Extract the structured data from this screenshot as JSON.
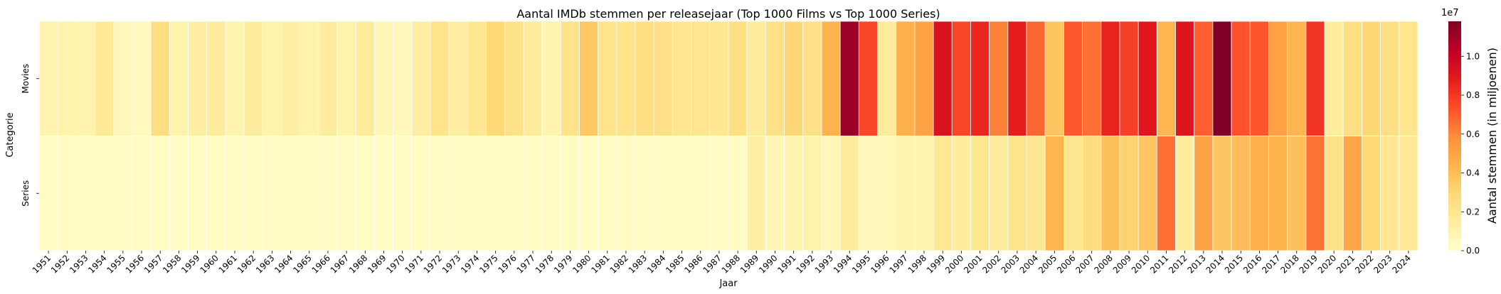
{
  "chart_data": {
    "type": "heatmap",
    "title": "Aantal IMDb stemmen per releasejaar (Top 1000 Films vs Top 1000 Series)",
    "xlabel": "Jaar",
    "ylabel": "Categorie",
    "colorbar_label": "Aantal stemmen (in miljoenen)",
    "colorbar_multiplier": "1e7",
    "colorbar_range": [
      0,
      11800000
    ],
    "colorbar_ticks": [
      "0.0",
      "0.2",
      "0.4",
      "0.6",
      "0.8",
      "1.0"
    ],
    "colorbar_tick_values": [
      0,
      2000000,
      4000000,
      6000000,
      8000000,
      10000000
    ],
    "colormap": "YlOrRd",
    "rows": [
      "Movies",
      "Series"
    ],
    "years": [
      "1951",
      "1952",
      "1953",
      "1954",
      "1955",
      "1956",
      "1957",
      "1958",
      "1959",
      "1960",
      "1961",
      "1962",
      "1963",
      "1964",
      "1965",
      "1966",
      "1967",
      "1968",
      "1969",
      "1970",
      "1971",
      "1972",
      "1973",
      "1974",
      "1975",
      "1976",
      "1977",
      "1978",
      "1979",
      "1980",
      "1981",
      "1982",
      "1983",
      "1984",
      "1985",
      "1986",
      "1987",
      "1988",
      "1989",
      "1990",
      "1991",
      "1992",
      "1993",
      "1994",
      "1995",
      "1996",
      "1997",
      "1998",
      "1999",
      "2000",
      "2001",
      "2002",
      "2003",
      "2004",
      "2005",
      "2006",
      "2007",
      "2008",
      "2009",
      "2010",
      "2011",
      "2012",
      "2013",
      "2014",
      "2015",
      "2016",
      "2017",
      "2018",
      "2019",
      "2020",
      "2021",
      "2022",
      "2023",
      "2024"
    ],
    "series": [
      {
        "name": "Movies",
        "values": [
          1000000,
          1100000,
          1000000,
          1800000,
          700000,
          500000,
          2600000,
          1100000,
          1400000,
          1600000,
          1000000,
          1500000,
          1100000,
          1300000,
          1100000,
          1500000,
          1100000,
          1600000,
          800000,
          600000,
          1400000,
          2200000,
          1400000,
          2000000,
          2900000,
          2300000,
          1600000,
          1000000,
          2200000,
          3600000,
          2200000,
          2200000,
          2500000,
          2400000,
          2100000,
          2100000,
          2000000,
          2500000,
          1600000,
          2400000,
          3000000,
          2400000,
          4400000,
          11100000,
          7600000,
          1600000,
          4500000,
          5000000,
          9200000,
          7600000,
          8500000,
          6200000,
          8800000,
          6800000,
          3700000,
          7100000,
          6600000,
          8600000,
          7800000,
          9000000,
          4300000,
          9100000,
          7000000,
          11800000,
          7300000,
          7200000,
          5100000,
          4300000,
          8100000,
          1500000,
          2500000,
          3000000,
          2500000,
          2100000
        ]
      },
      {
        "name": "Series",
        "values": [
          300000,
          300000,
          300000,
          300000,
          300000,
          300000,
          300000,
          300000,
          300000,
          300000,
          300000,
          300000,
          300000,
          300000,
          300000,
          300000,
          300000,
          300000,
          300000,
          300000,
          300000,
          300000,
          300000,
          300000,
          300000,
          300000,
          300000,
          300000,
          300000,
          300000,
          300000,
          300000,
          300000,
          300000,
          300000,
          300000,
          300000,
          300000,
          1300000,
          800000,
          1000000,
          1100000,
          700000,
          1500000,
          600000,
          700000,
          1000000,
          1000000,
          1900000,
          1500000,
          2000000,
          1500000,
          2200000,
          2000000,
          4300000,
          2000000,
          2600000,
          3900000,
          3200000,
          3700000,
          6600000,
          1500000,
          5000000,
          3700000,
          4000000,
          4600000,
          4400000,
          3900000,
          6500000,
          2300000,
          4900000,
          2900000,
          1900000,
          1800000
        ]
      }
    ]
  }
}
